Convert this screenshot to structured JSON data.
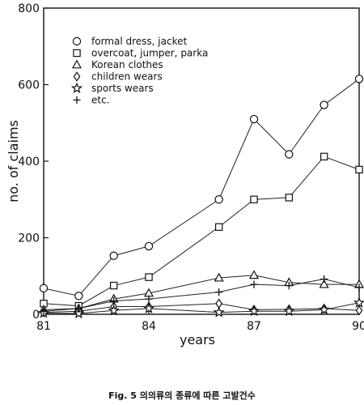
{
  "chart_data": {
    "type": "line",
    "xlabel": "years",
    "ylabel": "no. of claims",
    "xlim": [
      81,
      90
    ],
    "ylim": [
      0,
      800
    ],
    "x_ticks": [
      "81",
      "84",
      "87",
      "90"
    ],
    "y_ticks": [
      "0",
      "200",
      "400",
      "600",
      "800"
    ],
    "x": [
      81,
      82,
      83,
      84,
      86,
      87,
      88,
      89,
      90
    ],
    "legend_position": "top-left",
    "series": [
      {
        "name": "formal dress, jacket",
        "marker": "circle",
        "values": [
          68,
          48,
          153,
          178,
          300,
          510,
          418,
          547,
          615
        ]
      },
      {
        "name": "overcoat, jumper, parka",
        "marker": "square",
        "values": [
          28,
          22,
          75,
          97,
          228,
          300,
          305,
          412,
          378
        ]
      },
      {
        "name": "Korean clothes",
        "marker": "triangle",
        "values": [
          12,
          15,
          40,
          55,
          95,
          102,
          83,
          78,
          78
        ]
      },
      {
        "name": "children wears",
        "marker": "diamond",
        "values": [
          5,
          8,
          20,
          20,
          28,
          12,
          13,
          15,
          10
        ]
      },
      {
        "name": "sports wears",
        "marker": "star",
        "values": [
          3,
          2,
          10,
          15,
          5,
          8,
          8,
          12,
          30
        ]
      },
      {
        "name": "etc.",
        "marker": "plus",
        "values": [
          8,
          15,
          35,
          40,
          58,
          78,
          75,
          92,
          70
        ]
      }
    ]
  },
  "caption": "Fig. 5  의의류의 종류에 따른 고발건수"
}
